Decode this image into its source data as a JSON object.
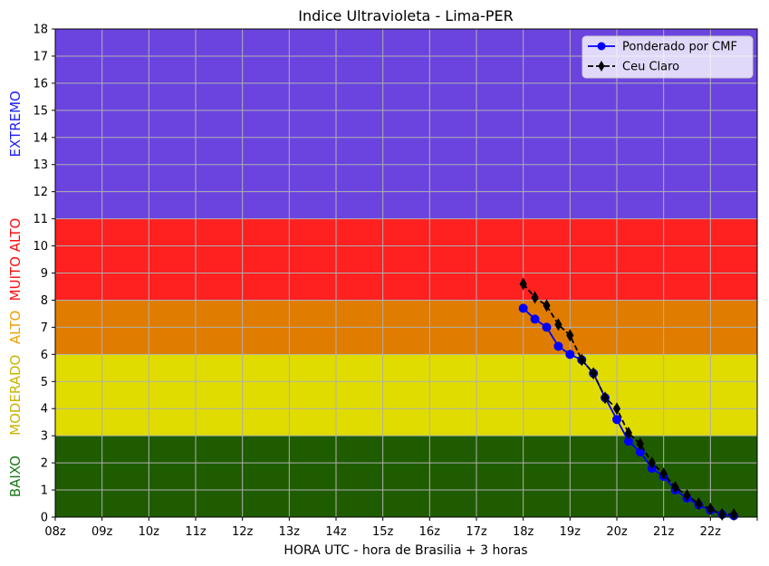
{
  "chart_data": {
    "type": "line",
    "title": "Indice Ultravioleta - Lima-PER",
    "xlabel": "HORA UTC - hora de Brasilia + 3 horas",
    "ylabel": "",
    "x_ticks": [
      "08z",
      "09z",
      "10z",
      "11z",
      "12z",
      "13z",
      "14z",
      "15z",
      "16z",
      "17z",
      "18z",
      "19z",
      "20z",
      "21z",
      "22z"
    ],
    "xlim": [
      8,
      23
    ],
    "ylim": [
      0,
      18
    ],
    "y_ticks": [
      0,
      1,
      2,
      3,
      4,
      5,
      6,
      7,
      8,
      9,
      10,
      11,
      12,
      13,
      14,
      15,
      16,
      17,
      18
    ],
    "grid": true,
    "legend_position": "top-right",
    "bands": [
      {
        "label": "BAIXO",
        "from": 0,
        "to": 3,
        "color": "#1f5c00",
        "label_color": "#1a7a1a"
      },
      {
        "label": "MODERADO",
        "from": 3,
        "to": 6,
        "color": "#e0dc00",
        "label_color": "#c8b400"
      },
      {
        "label": "ALTO",
        "from": 6,
        "to": 8,
        "color": "#e07c00",
        "label_color": "#f0a000"
      },
      {
        "label": "MUITO ALTO",
        "from": 8,
        "to": 11,
        "color": "#ff2020",
        "label_color": "#ff1010"
      },
      {
        "label": "EXTREMO",
        "from": 11,
        "to": 18,
        "color": "#6b44e0",
        "label_color": "#2020ff"
      }
    ],
    "series": [
      {
        "name": "Ponderado por CMF",
        "color": "#0000ff",
        "marker": "circle",
        "line_style": "solid",
        "x": [
          18.0,
          18.25,
          18.5,
          18.75,
          19.0,
          19.25,
          19.5,
          19.75,
          20.0,
          20.25,
          20.5,
          20.75,
          21.0,
          21.25,
          21.5,
          21.75,
          22.0,
          22.25,
          22.5
        ],
        "y": [
          7.7,
          7.3,
          7.0,
          6.3,
          6.0,
          5.8,
          5.3,
          4.4,
          3.6,
          2.8,
          2.4,
          1.8,
          1.5,
          1.0,
          0.7,
          0.45,
          0.25,
          0.1,
          0.05
        ]
      },
      {
        "name": "Ceu Claro",
        "color": "#000000",
        "marker": "thin-diamond",
        "line_style": "dashed",
        "x": [
          18.0,
          18.25,
          18.5,
          18.75,
          19.0,
          19.25,
          19.5,
          19.75,
          20.0,
          20.25,
          20.5,
          20.75,
          21.0,
          21.25,
          21.5,
          21.75,
          22.0,
          22.25,
          22.5
        ],
        "y": [
          8.6,
          8.1,
          7.8,
          7.1,
          6.7,
          5.8,
          5.3,
          4.4,
          4.0,
          3.1,
          2.7,
          2.0,
          1.6,
          1.1,
          0.8,
          0.5,
          0.3,
          0.1,
          0.1
        ]
      }
    ]
  }
}
